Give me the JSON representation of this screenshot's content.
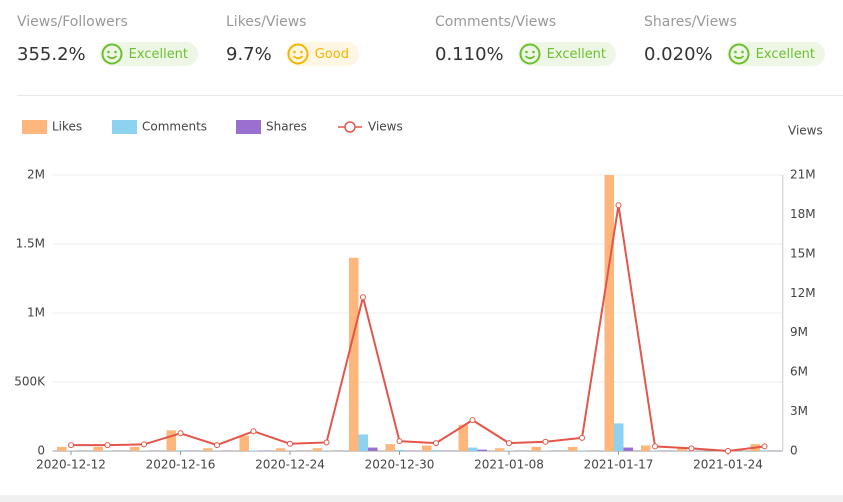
{
  "metrics": [
    {
      "label": "Views/Followers",
      "value": "355.2%",
      "status": "Excellent"
    },
    {
      "label": "Likes/Views",
      "value": "9.7%",
      "status": "Good"
    },
    {
      "label": "Comments/Views",
      "value": "0.110%",
      "status": "Excellent"
    },
    {
      "label": "Shares/Views",
      "value": "0.020%",
      "status": "Excellent"
    }
  ],
  "chart_data": {
    "type": "bar",
    "categories": [
      "2020-12-12",
      null,
      null,
      "2020-12-16",
      null,
      null,
      "2020-12-24",
      null,
      null,
      "2020-12-30",
      null,
      null,
      "2021-01-08",
      null,
      null,
      "2021-01-17",
      null,
      null,
      "2021-01-24",
      null
    ],
    "series": [
      {
        "name": "Likes",
        "color": "#fdb67c",
        "values": [
          30000,
          30000,
          30000,
          150000,
          20000,
          110000,
          20000,
          20000,
          1400000,
          50000,
          40000,
          190000,
          20000,
          30000,
          30000,
          2000000,
          40000,
          20000,
          10000,
          50000
        ]
      },
      {
        "name": "Comments",
        "color": "#8dd3f0",
        "values": [
          3000,
          3000,
          3000,
          5000,
          2000,
          4000,
          2000,
          2000,
          120000,
          8000,
          6000,
          25000,
          3000,
          3000,
          3000,
          200000,
          4000,
          2000,
          1000,
          5000
        ]
      },
      {
        "name": "Shares",
        "color": "#9b6fcf",
        "values": [
          1000,
          1000,
          1000,
          2000,
          1000,
          2000,
          1000,
          1000,
          25000,
          2000,
          2000,
          10000,
          1000,
          1000,
          1000,
          25000,
          1000,
          1000,
          500,
          1000
        ]
      },
      {
        "name": "Views",
        "color": "#e4564a",
        "axis": "y2",
        "values": [
          450000,
          450000,
          500000,
          1350000,
          450000,
          1500000,
          550000,
          650000,
          11700000,
          750000,
          600000,
          2350000,
          600000,
          700000,
          1000000,
          18700000,
          350000,
          200000,
          0,
          350000
        ]
      }
    ],
    "ylim": [
      0,
      2000000
    ],
    "yticks": [
      0,
      {
        "value": 500000,
        "label": "500K"
      },
      {
        "value": 1000000,
        "label": "1M"
      },
      {
        "value": 1500000,
        "label": "1.5M"
      },
      {
        "value": 2000000,
        "label": "2M"
      }
    ],
    "y2label": "Views",
    "y2lim": [
      0,
      21000000
    ],
    "y2ticks": [
      0,
      {
        "value": 3000000,
        "label": "3M"
      },
      {
        "value": 6000000,
        "label": "6M"
      },
      {
        "value": 9000000,
        "label": "9M"
      },
      {
        "value": 12000000,
        "label": "12M"
      },
      {
        "value": 15000000,
        "label": "15M"
      },
      {
        "value": 18000000,
        "label": "18M"
      },
      {
        "value": 21000000,
        "label": "21M"
      }
    ],
    "grid": true
  }
}
